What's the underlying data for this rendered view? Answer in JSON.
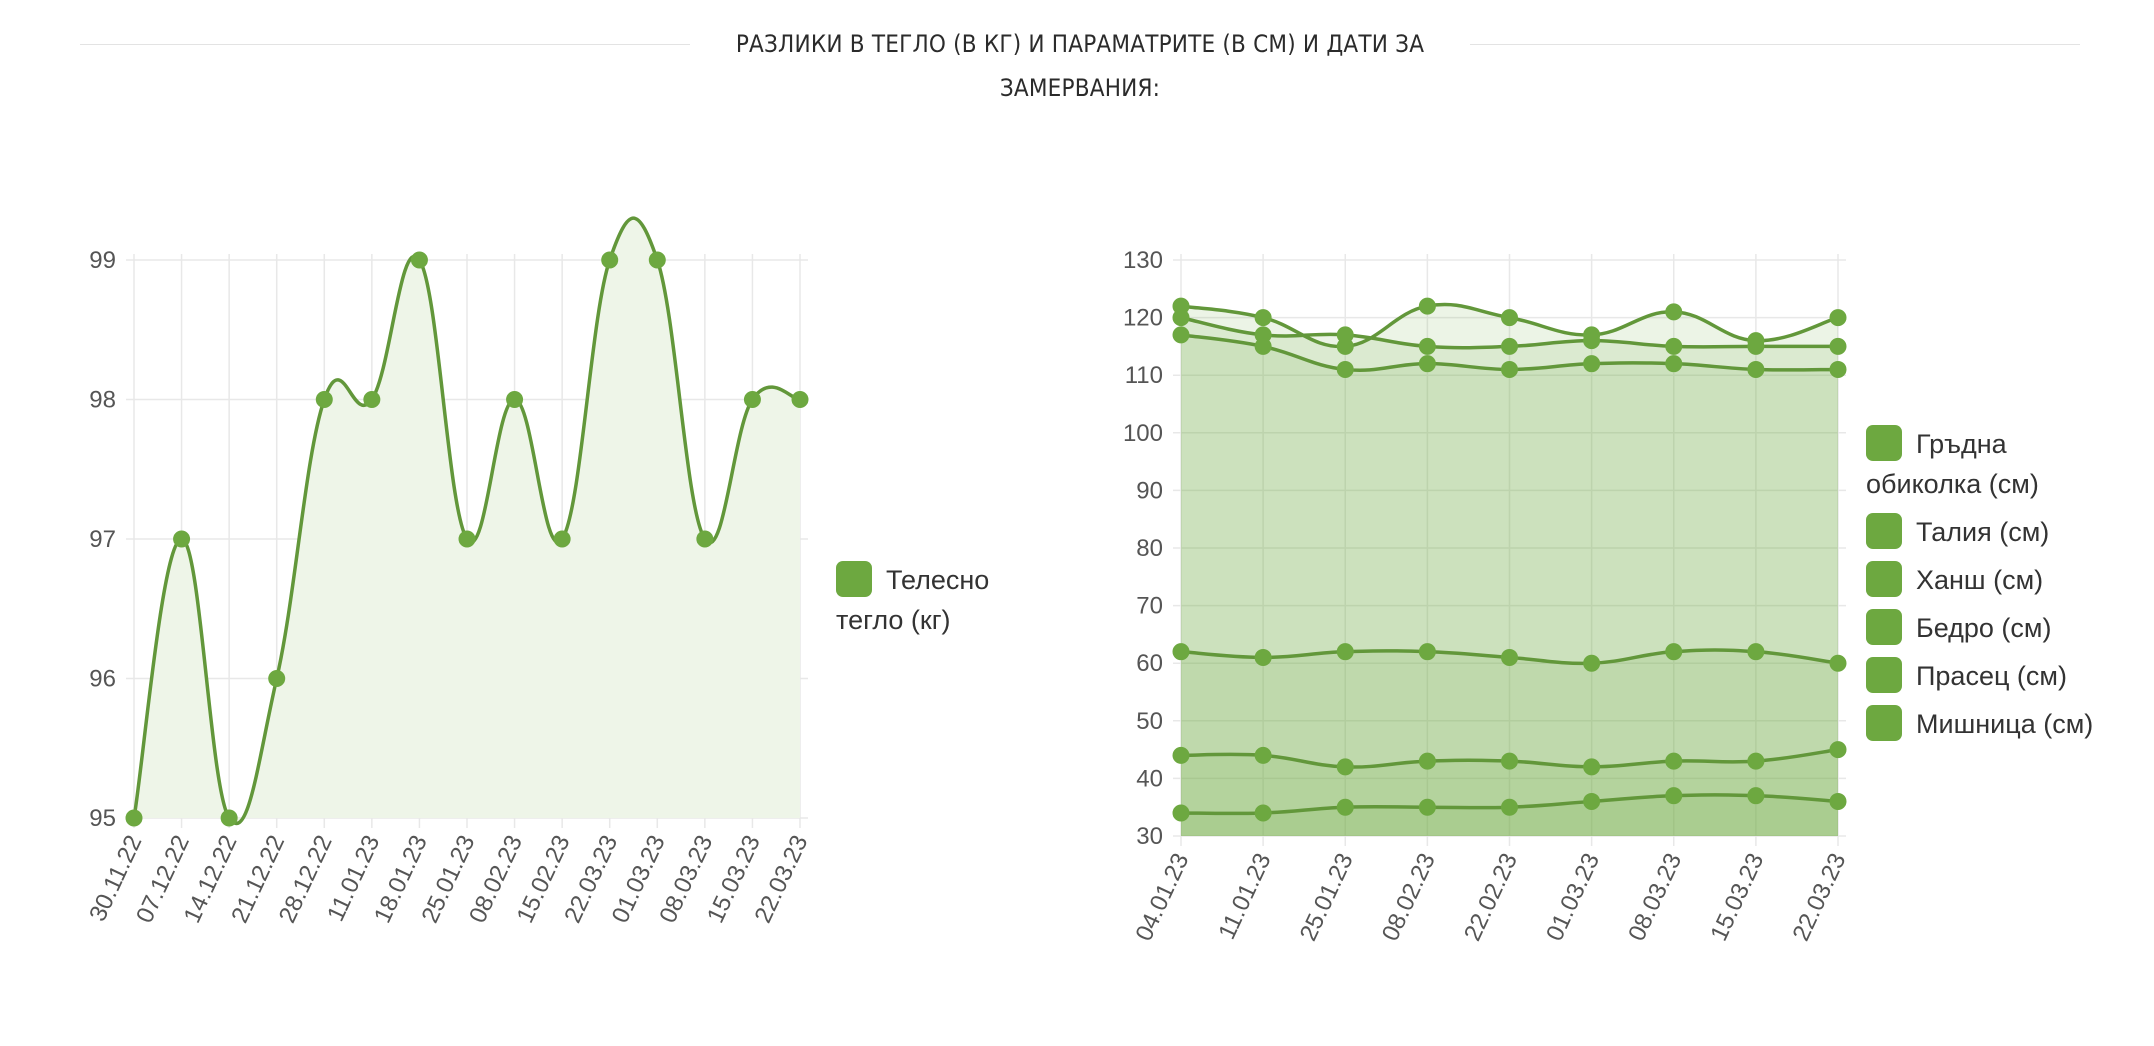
{
  "header": {
    "title": "РАЗЛИКИ В ТЕГЛО (В КГ) И ПАРАМАТРИТЕ (В СМ) И ДАТИ ЗА ЗАМЕРВАНИЯ:"
  },
  "colors": {
    "line": "#62973a",
    "point": "#6da840",
    "grid": "#e8e8e8",
    "fill_light": "#eef5e8",
    "fill_layer": "rgba(109,168,64,0.13)"
  },
  "chart_data": [
    {
      "type": "line",
      "curve": "smooth",
      "filled": true,
      "grid": true,
      "legend_position": "right",
      "x_labels": [
        "30.11.22",
        "07.12.22",
        "14.12.22",
        "21.12.22",
        "28.12.22",
        "11.01.23",
        "18.01.23",
        "25.01.23",
        "08.02.23",
        "15.02.23",
        "22.03.23",
        "01.03.23",
        "08.03.23",
        "15.03.23",
        "22.03.23"
      ],
      "ylim": [
        95,
        99
      ],
      "y_ticks": [
        "95",
        "96",
        "97",
        "98",
        "99"
      ],
      "series": [
        {
          "name": "Телесно тегло (кг)",
          "values": [
            95,
            97,
            95,
            96,
            98,
            98,
            99,
            97,
            98,
            97,
            99,
            99,
            97,
            98,
            98
          ]
        }
      ]
    },
    {
      "type": "line",
      "curve": "smooth",
      "filled": true,
      "grid": true,
      "legend_position": "right",
      "x_labels": [
        "04.01.23",
        "11.01.23",
        "25.01.23",
        "08.02.23",
        "22.02.23",
        "01.03.23",
        "08.03.23",
        "15.03.23",
        "22.03.23"
      ],
      "ylim": [
        30,
        130
      ],
      "y_ticks": [
        "30",
        "40",
        "50",
        "60",
        "70",
        "80",
        "90",
        "100",
        "110",
        "120",
        "130"
      ],
      "series": [
        {
          "name": "Гръдна обиколка (см)",
          "values": [
            122,
            120,
            115,
            122,
            120,
            117,
            121,
            116,
            120
          ]
        },
        {
          "name": "Талия (см)",
          "values": [
            120,
            117,
            117,
            115,
            115,
            116,
            115,
            115,
            115
          ]
        },
        {
          "name": "Ханш (см)",
          "values": [
            117,
            115,
            111,
            112,
            111,
            112,
            112,
            111,
            111
          ]
        },
        {
          "name": "Бедро (см)",
          "values": [
            62,
            61,
            62,
            62,
            61,
            60,
            62,
            62,
            60
          ]
        },
        {
          "name": "Прасец (см)",
          "values": [
            44,
            44,
            42,
            43,
            43,
            42,
            43,
            43,
            45
          ]
        },
        {
          "name": "Мишница (см)",
          "values": [
            34,
            34,
            35,
            35,
            35,
            36,
            37,
            37,
            36
          ]
        }
      ]
    }
  ]
}
